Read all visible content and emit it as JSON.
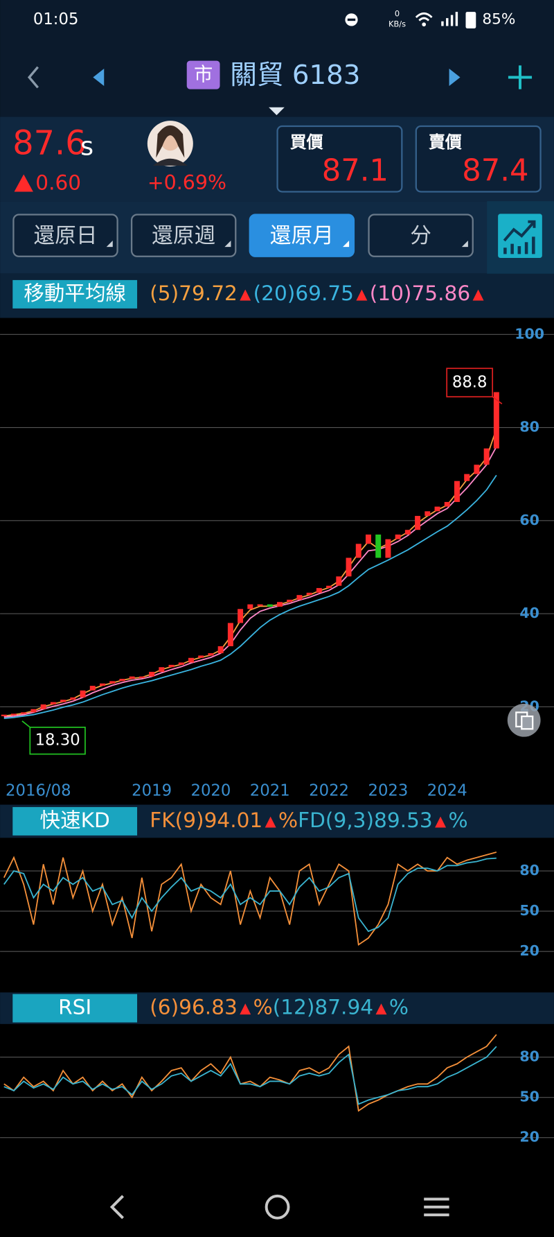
{
  "status_bar": {
    "time": "01:05",
    "net_speed_value": "0",
    "net_speed_unit": "KB/s",
    "battery": "85%"
  },
  "header": {
    "market_badge": "市",
    "stock_name": "關貿 6183"
  },
  "quote": {
    "price": "87.6",
    "price_flag": "s",
    "change": "0.60",
    "change_percent": "+0.69%",
    "bid_label": "買價",
    "bid": "87.1",
    "ask_label": "賣價",
    "ask": "87.4"
  },
  "tabs": {
    "items": [
      "還原日",
      "還原週",
      "還原月",
      "分"
    ],
    "active": 2
  },
  "chart_data": [
    {
      "type": "candlestick",
      "legend_title": "移動平均線",
      "categories": [
        "2016/08",
        null,
        null,
        null,
        null,
        null,
        null,
        null,
        null,
        null,
        null,
        null,
        null,
        null,
        null,
        "2019",
        null,
        null,
        null,
        null,
        null,
        "2020",
        null,
        null,
        null,
        null,
        null,
        "2021",
        null,
        null,
        null,
        null,
        null,
        "2022",
        null,
        null,
        null,
        null,
        null,
        "2023",
        null,
        null,
        null,
        null,
        null,
        "2024",
        null,
        null,
        null,
        null,
        null
      ],
      "close": [
        18.3,
        18.5,
        18.8,
        19.5,
        20.5,
        21,
        21.5,
        22,
        23.5,
        24.5,
        25,
        25.5,
        26,
        26.5,
        26.5,
        27.5,
        28.5,
        29,
        29.5,
        30.5,
        31,
        31.5,
        33,
        38,
        41,
        42,
        42,
        41.5,
        42.5,
        43,
        44,
        44.5,
        45.5,
        46,
        48,
        52,
        55,
        57,
        52,
        56,
        57,
        58,
        61,
        62,
        63,
        64,
        68.5,
        70,
        72,
        75.5,
        87.6
      ],
      "up_color": "#ff2a2a",
      "down_color": "#22c522",
      "series": [
        {
          "name": "(5)",
          "color": "#f5a040",
          "values": [
            18,
            18.3,
            18.6,
            19.1,
            20,
            20.6,
            21.1,
            21.7,
            22.8,
            23.8,
            24.6,
            25.1,
            25.7,
            26.1,
            26.3,
            27,
            28,
            28.6,
            29.1,
            30,
            30.6,
            31.1,
            32.2,
            35,
            38.5,
            40.8,
            41.6,
            41.6,
            42,
            42.6,
            43.4,
            44,
            44.9,
            45.6,
            47,
            50,
            53,
            55.5,
            54,
            55,
            56.3,
            57.5,
            59.5,
            61,
            62.3,
            63.3,
            66,
            68.8,
            70.8,
            73.5,
            79.72
          ]
        },
        {
          "name": "(20)",
          "color": "#3ab4e0",
          "values": [
            17.5,
            17.7,
            18,
            18.3,
            18.8,
            19.3,
            19.9,
            20.4,
            21,
            21.8,
            22.6,
            23.3,
            24,
            24.6,
            25.1,
            25.6,
            26.2,
            26.8,
            27.4,
            28,
            28.7,
            29.3,
            30,
            31.3,
            33,
            35,
            37,
            38.6,
            39.8,
            40.8,
            41.6,
            42.3,
            43,
            43.7,
            44.6,
            46,
            47.8,
            49.5,
            50.5,
            51.5,
            52.6,
            53.7,
            55,
            56.3,
            57.6,
            58.8,
            60.5,
            62.3,
            64.3,
            66.6,
            69.75
          ]
        },
        {
          "name": "(10)",
          "color": "#ff88c8",
          "values": [
            17.8,
            18,
            18.3,
            18.8,
            19.5,
            20.1,
            20.6,
            21.2,
            22,
            23,
            23.8,
            24.6,
            25.2,
            25.7,
            26,
            26.5,
            27.3,
            28,
            28.6,
            29.4,
            30,
            30.6,
            31.5,
            33.5,
            36.5,
            39,
            40.5,
            41.2,
            41.7,
            42.2,
            42.9,
            43.5,
            44.3,
            45,
            46.2,
            48.5,
            51,
            53.5,
            53.8,
            54.5,
            55.5,
            56.8,
            58.5,
            60,
            61.5,
            62.6,
            64.8,
            67,
            69.5,
            72,
            75.86
          ]
        }
      ],
      "high": 88.8,
      "low": {
        "value": 18.3,
        "label": "18.30"
      },
      "ylim": [
        5.4,
        103.2
      ],
      "yticks": [
        20,
        40,
        60,
        80,
        100
      ],
      "grid": true
    },
    {
      "type": "line",
      "legend_title": "快速KD",
      "unit": "%",
      "series": [
        {
          "name": "FK(9)",
          "color": "#f5903a",
          "values": [
            75,
            90,
            70,
            40,
            85,
            55,
            90,
            60,
            80,
            50,
            70,
            40,
            60,
            30,
            75,
            35,
            70,
            75,
            85,
            50,
            70,
            60,
            55,
            80,
            40,
            65,
            45,
            75,
            65,
            40,
            80,
            85,
            55,
            70,
            85,
            80,
            25,
            30,
            40,
            55,
            85,
            80,
            85,
            80,
            80,
            90,
            85,
            88,
            90,
            92,
            94.01
          ]
        },
        {
          "name": "FD(9,3)",
          "color": "#3ab4d0",
          "values": [
            70,
            80,
            78,
            60,
            70,
            65,
            75,
            70,
            75,
            65,
            68,
            55,
            58,
            45,
            60,
            50,
            60,
            68,
            75,
            65,
            68,
            65,
            60,
            70,
            55,
            60,
            55,
            65,
            65,
            55,
            68,
            75,
            65,
            68,
            75,
            78,
            45,
            35,
            38,
            45,
            70,
            78,
            82,
            82,
            80,
            84,
            84,
            86,
            87,
            89,
            89.53
          ]
        }
      ],
      "ylim": [
        -4.1,
        104.1
      ],
      "yticks": [
        20,
        50,
        80
      ],
      "grid": true
    },
    {
      "type": "line",
      "legend_title": "RSI",
      "unit": "%",
      "series": [
        {
          "name": "(6)",
          "color": "#f5903a",
          "values": [
            60,
            55,
            65,
            58,
            62,
            55,
            70,
            60,
            65,
            55,
            62,
            55,
            60,
            50,
            65,
            55,
            62,
            70,
            72,
            62,
            70,
            75,
            68,
            80,
            60,
            62,
            58,
            65,
            63,
            60,
            70,
            72,
            68,
            72,
            82,
            88,
            40,
            45,
            48,
            52,
            55,
            58,
            60,
            60,
            65,
            72,
            75,
            80,
            84,
            88,
            96.83
          ]
        },
        {
          "name": "(12)",
          "color": "#3ab4d0",
          "values": [
            58,
            55,
            62,
            57,
            60,
            56,
            65,
            60,
            62,
            56,
            60,
            56,
            58,
            52,
            62,
            56,
            60,
            66,
            68,
            62,
            66,
            70,
            66,
            75,
            60,
            60,
            58,
            62,
            62,
            60,
            66,
            68,
            66,
            68,
            76,
            82,
            45,
            48,
            50,
            52,
            55,
            56,
            58,
            58,
            60,
            65,
            68,
            72,
            76,
            80,
            87.94
          ]
        }
      ],
      "ylim": [
        -8.2,
        104.7
      ],
      "yticks": [
        20,
        50,
        80
      ],
      "grid": true
    }
  ]
}
